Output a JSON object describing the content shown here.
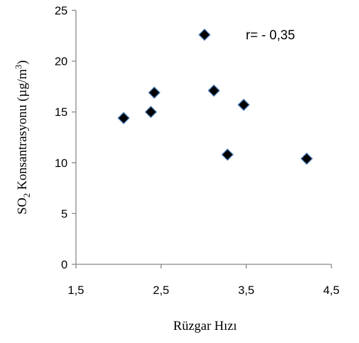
{
  "chart_data": {
    "type": "scatter",
    "title": "",
    "xlabel": "Rüzgar Hızı",
    "ylabel": {
      "prefix": "SO",
      "subscript": "2",
      "suffix": " Konsantrasyonu  (µg/m",
      "superscript": "3",
      "close": ")"
    },
    "xlim": [
      1.5,
      4.5
    ],
    "ylim": [
      0,
      25
    ],
    "xticks": [
      "1,5",
      "2,5",
      "3,5",
      "4,5"
    ],
    "yticks": [
      "0",
      "5",
      "10",
      "15",
      "20",
      "25"
    ],
    "annotation": "r= - 0,35",
    "grid": false,
    "legend": "none",
    "marker": {
      "shape": "diamond",
      "fill": "#000000",
      "stroke": "#4a7ebb"
    },
    "points": [
      {
        "x": 2.06,
        "y": 14.4
      },
      {
        "x": 2.38,
        "y": 15.0
      },
      {
        "x": 2.42,
        "y": 16.9
      },
      {
        "x": 3.01,
        "y": 22.6
      },
      {
        "x": 3.12,
        "y": 17.1
      },
      {
        "x": 3.28,
        "y": 10.8
      },
      {
        "x": 3.47,
        "y": 15.7
      },
      {
        "x": 4.21,
        "y": 10.4
      }
    ]
  }
}
